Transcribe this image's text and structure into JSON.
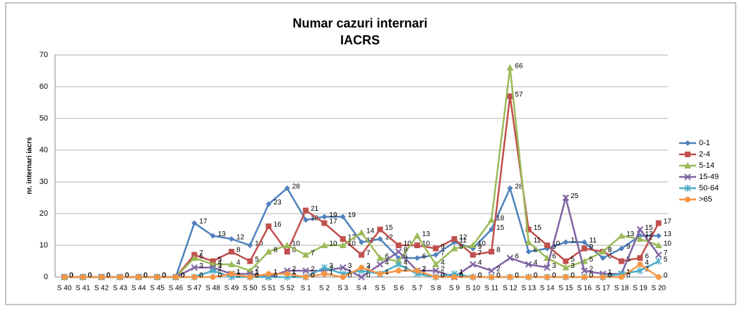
{
  "chart_data": {
    "type": "line",
    "title": [
      "Numar cazuri internari",
      "IACRS"
    ],
    "y_label": "nr. internari iacrs",
    "categories": [
      "S 40",
      "S 41",
      "S 42",
      "S 43",
      "S 44",
      "S 45",
      "S 46",
      "S 47",
      "S 48",
      "S 49",
      "S 50",
      "S 51",
      "S 52",
      "S 1",
      "S 2",
      "S 3",
      "S 4",
      "S 5",
      "S 6",
      "S 7",
      "S 8",
      "S 9",
      "S 10",
      "S 11",
      "S 12",
      "S 13",
      "S 14",
      "S 15",
      "S 16",
      "S 17",
      "S 18",
      "S 19",
      "S 20"
    ],
    "series": [
      {
        "name": "0-1",
        "color": "#4f81bd",
        "marker": "diamond",
        "values": [
          0,
          0,
          0,
          0,
          0,
          0,
          0,
          17,
          13,
          12,
          10,
          23,
          28,
          18,
          19,
          19,
          11,
          12,
          6,
          6,
          7,
          11,
          9,
          15,
          28,
          8,
          9,
          11,
          11,
          6,
          9,
          13,
          13
        ]
      },
      {
        "name": "2-4",
        "color": "#c0504d",
        "marker": "square",
        "values": [
          0,
          0,
          0,
          0,
          0,
          0,
          0,
          7,
          5,
          8,
          5,
          16,
          8,
          21,
          17,
          12,
          7,
          15,
          10,
          10,
          9,
          12,
          7,
          8,
          57,
          15,
          10,
          5,
          9,
          8,
          5,
          6,
          17
        ]
      },
      {
        "name": "5-14",
        "color": "#9bbb59",
        "marker": "triangle",
        "values": [
          0,
          0,
          0,
          0,
          0,
          0,
          0,
          6,
          4,
          4,
          2,
          8,
          10,
          7,
          10,
          10,
          14,
          6,
          5,
          13,
          4,
          9,
          10,
          18,
          66,
          11,
          6,
          3,
          5,
          8,
          13,
          12,
          10
        ]
      },
      {
        "name": "15-49",
        "color": "#8064a2",
        "marker": "x",
        "values": [
          0,
          0,
          0,
          0,
          0,
          0,
          0,
          3,
          3,
          1,
          1,
          0,
          2,
          2,
          2,
          3,
          0,
          4,
          8,
          2,
          2,
          0,
          4,
          2,
          6,
          4,
          3,
          25,
          2,
          1,
          1,
          15,
          7
        ]
      },
      {
        "name": "50-64",
        "color": "#4bacc6",
        "marker": "star",
        "values": [
          0,
          0,
          0,
          0,
          0,
          0,
          0,
          0,
          2,
          0,
          0,
          0,
          0,
          0,
          3,
          1,
          2,
          1,
          4,
          1,
          0,
          1,
          0,
          0,
          0,
          0,
          0,
          0,
          0,
          0,
          1,
          2,
          5
        ]
      },
      {
        "name": ">65",
        "color": "#f79646",
        "marker": "circle",
        "values": [
          0,
          0,
          0,
          0,
          0,
          0,
          0,
          0,
          0,
          1,
          0,
          1,
          1,
          0,
          1,
          0,
          3,
          1,
          2,
          2,
          0,
          0,
          0,
          0,
          0,
          0,
          0,
          0,
          0,
          0,
          0,
          4,
          0
        ]
      }
    ],
    "ylim": [
      0,
      70
    ],
    "yticks": [
      0,
      10,
      20,
      30,
      40,
      50,
      60,
      70
    ],
    "grid": true,
    "legend": "right"
  }
}
